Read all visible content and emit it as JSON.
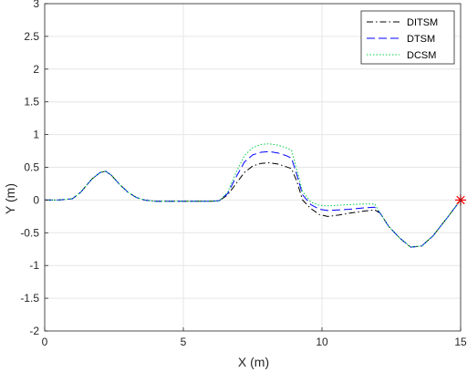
{
  "chart_data": {
    "type": "line",
    "title": "",
    "xlabel": "X (m)",
    "ylabel": "Y (m)",
    "xlim": [
      0,
      15
    ],
    "ylim": [
      -2,
      3
    ],
    "xticks": [
      "0",
      "5",
      "10",
      "15"
    ],
    "xtick_values": [
      0,
      5,
      10,
      15
    ],
    "yticks": [
      "-2",
      "-1.5",
      "-1",
      "-0.5",
      "0",
      "0.5",
      "1",
      "1.5",
      "2",
      "2.5",
      "3"
    ],
    "ytick_values": [
      -2,
      -1.5,
      -1,
      -0.5,
      0,
      0.5,
      1,
      1.5,
      2,
      2.5,
      3
    ],
    "grid": true,
    "legend_location": "top-right",
    "series": [
      {
        "name": "DITSM",
        "color": "#000000",
        "style": "dash-dot",
        "x": [
          0,
          0.5,
          1.0,
          1.3,
          1.7,
          2.0,
          2.2,
          2.4,
          2.7,
          3.0,
          3.3,
          3.6,
          3.8,
          4.0,
          5.0,
          6.0,
          6.3,
          6.6,
          6.9,
          7.2,
          7.5,
          7.8,
          8.1,
          8.4,
          8.7,
          8.9,
          9.1,
          9.3,
          9.6,
          9.9,
          10.2,
          10.6,
          11.0,
          11.5,
          11.9,
          12.1,
          12.4,
          12.8,
          13.2,
          13.6,
          14.0,
          14.5,
          15.0
        ],
        "y": [
          0,
          0,
          0.02,
          0.12,
          0.32,
          0.42,
          0.44,
          0.38,
          0.24,
          0.12,
          0.04,
          0.0,
          -0.01,
          -0.02,
          -0.02,
          -0.02,
          -0.01,
          0.08,
          0.25,
          0.42,
          0.52,
          0.56,
          0.57,
          0.55,
          0.51,
          0.48,
          0.28,
          0.0,
          -0.13,
          -0.22,
          -0.25,
          -0.23,
          -0.2,
          -0.17,
          -0.15,
          -0.2,
          -0.4,
          -0.58,
          -0.72,
          -0.7,
          -0.55,
          -0.28,
          0.0
        ]
      },
      {
        "name": "DTSM",
        "color": "#0000ff",
        "style": "dashed",
        "x": [
          0,
          0.5,
          1.0,
          1.3,
          1.7,
          2.0,
          2.2,
          2.4,
          2.7,
          3.0,
          3.3,
          3.6,
          3.8,
          4.0,
          5.0,
          6.0,
          6.3,
          6.6,
          6.9,
          7.2,
          7.5,
          7.8,
          8.1,
          8.4,
          8.7,
          8.9,
          9.1,
          9.3,
          9.6,
          9.9,
          10.2,
          10.6,
          11.0,
          11.5,
          11.9,
          12.1,
          12.4,
          12.8,
          13.2,
          13.6,
          14.0,
          14.5,
          15.0
        ],
        "y": [
          0,
          0,
          0.02,
          0.12,
          0.32,
          0.42,
          0.44,
          0.38,
          0.24,
          0.12,
          0.04,
          0.0,
          -0.01,
          -0.02,
          -0.02,
          -0.02,
          -0.01,
          0.1,
          0.35,
          0.58,
          0.69,
          0.73,
          0.74,
          0.72,
          0.68,
          0.64,
          0.38,
          0.08,
          -0.07,
          -0.14,
          -0.16,
          -0.15,
          -0.14,
          -0.12,
          -0.11,
          -0.2,
          -0.4,
          -0.58,
          -0.72,
          -0.7,
          -0.55,
          -0.28,
          0.0
        ]
      },
      {
        "name": "DCSM",
        "color": "#00cc44",
        "style": "dotted",
        "x": [
          0,
          0.5,
          1.0,
          1.3,
          1.7,
          2.0,
          2.2,
          2.4,
          2.7,
          3.0,
          3.3,
          3.6,
          3.8,
          4.0,
          5.0,
          6.0,
          6.3,
          6.6,
          6.9,
          7.2,
          7.5,
          7.8,
          8.1,
          8.4,
          8.7,
          8.9,
          9.1,
          9.3,
          9.6,
          9.9,
          10.2,
          10.6,
          11.0,
          11.5,
          11.9,
          12.1,
          12.4,
          12.8,
          13.2,
          13.6,
          14.0,
          14.5,
          15.0
        ],
        "y": [
          0,
          0,
          0.02,
          0.12,
          0.32,
          0.42,
          0.44,
          0.38,
          0.24,
          0.12,
          0.04,
          0.0,
          -0.01,
          -0.02,
          -0.02,
          -0.02,
          -0.01,
          0.12,
          0.42,
          0.68,
          0.8,
          0.85,
          0.86,
          0.84,
          0.8,
          0.76,
          0.45,
          0.13,
          -0.03,
          -0.08,
          -0.09,
          -0.08,
          -0.07,
          -0.06,
          -0.06,
          -0.2,
          -0.4,
          -0.58,
          -0.72,
          -0.7,
          -0.55,
          -0.28,
          0.0
        ]
      }
    ],
    "endpoint_marker": {
      "x": 15,
      "y": 0,
      "symbol": "asterisk",
      "color": "#ff0000"
    }
  }
}
